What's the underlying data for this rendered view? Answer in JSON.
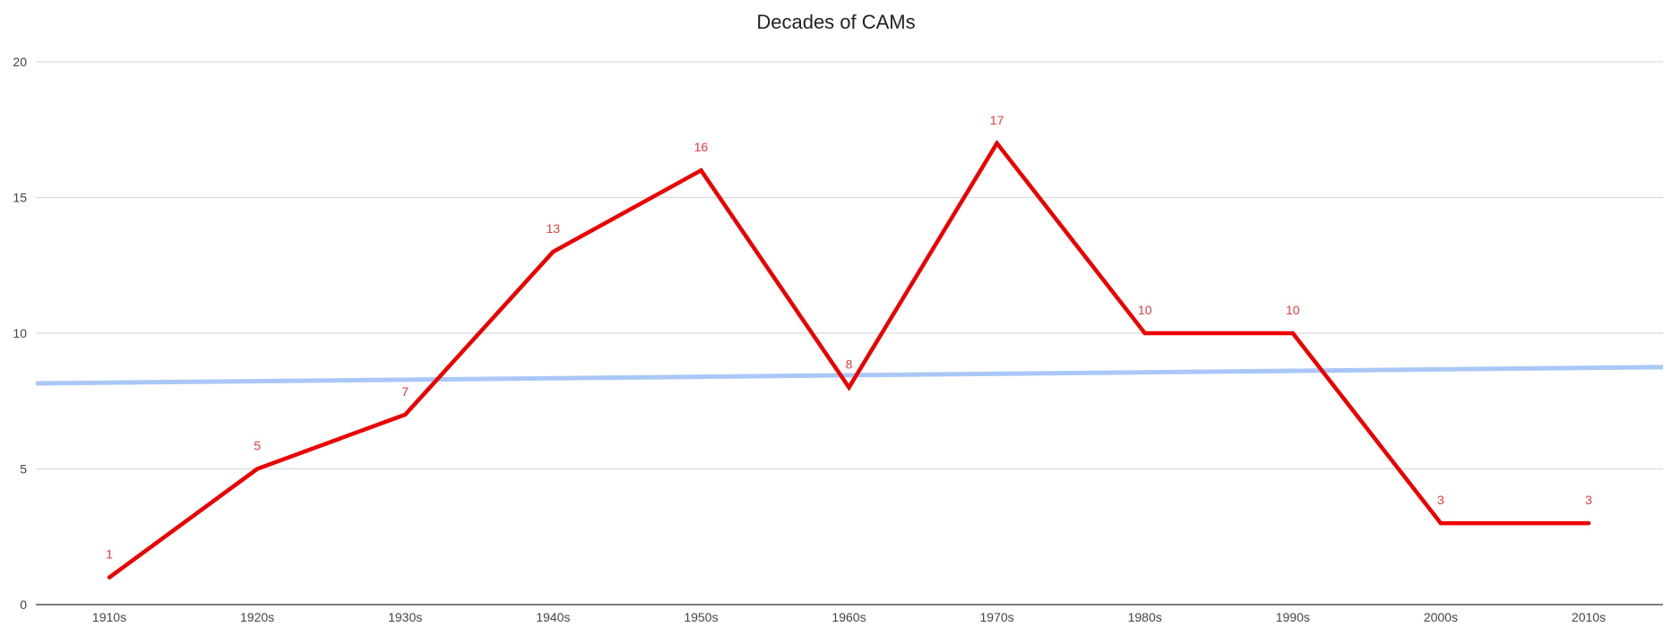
{
  "chart_data": {
    "type": "line",
    "title": "Decades of CAMs",
    "xlabel": "",
    "ylabel": "",
    "categories": [
      "1910s",
      "1920s",
      "1930s",
      "1940s",
      "1950s",
      "1960s",
      "1970s",
      "1980s",
      "1990s",
      "2000s",
      "2010s"
    ],
    "values": [
      1,
      5,
      7,
      13,
      16,
      8,
      17,
      10,
      10,
      3,
      3
    ],
    "data_labels": [
      "1",
      "5",
      "7",
      "13",
      "16",
      "8",
      "17",
      "10",
      "10",
      "3",
      "3"
    ],
    "yticks": [
      "0",
      "5",
      "10",
      "15",
      "20"
    ],
    "ylim": [
      0,
      20
    ],
    "grid": true,
    "legend": "none",
    "trendline": {
      "type": "linear",
      "start_value": 8.15,
      "end_value": 8.75
    },
    "colors": {
      "series": "#ee0000",
      "data_label": "#ee3b3b",
      "trendline": "#a9c8f7",
      "grid": "#d9d9d9",
      "axis": "#333333",
      "tick_label": "#444444"
    }
  }
}
